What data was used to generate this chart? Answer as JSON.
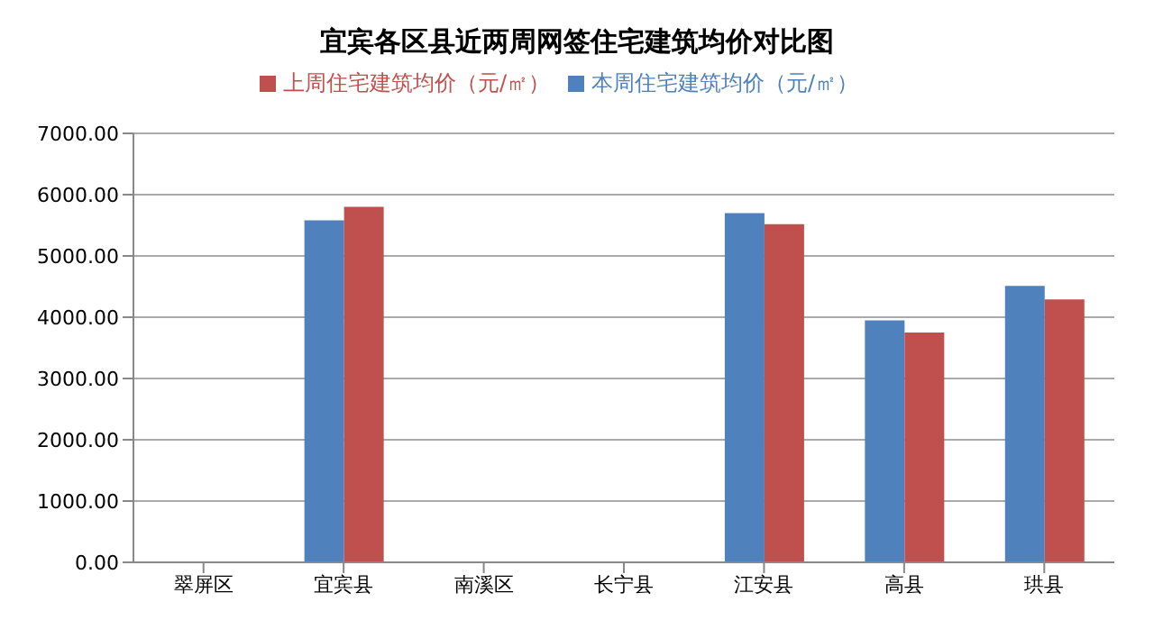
{
  "chart_data": {
    "type": "bar",
    "title": "宜宾各区县近两周网签住宅建筑均价对比图",
    "categories": [
      "翠屏区",
      "宜宾县",
      "南溪区",
      "长宁县",
      "江安县",
      "高县",
      "珙县"
    ],
    "series": [
      {
        "name": "本周住宅建筑均价（元/㎡）",
        "color": "#4f81bd",
        "values": [
          null,
          5580,
          null,
          null,
          5700,
          3950,
          4510
        ]
      },
      {
        "name": "上周住宅建筑均价（元/㎡）",
        "color": "#c0504d",
        "values": [
          null,
          5800,
          null,
          null,
          5520,
          3750,
          4290
        ]
      }
    ],
    "ylim": [
      0,
      7000
    ],
    "yticks": [
      {
        "value": 0,
        "label": "0.00"
      },
      {
        "value": 1000,
        "label": "1000.00"
      },
      {
        "value": 2000,
        "label": "2000.00"
      },
      {
        "value": 3000,
        "label": "3000.00"
      },
      {
        "value": 4000,
        "label": "4000.00"
      },
      {
        "value": 5000,
        "label": "5000.00"
      },
      {
        "value": 6000,
        "label": "6000.00"
      },
      {
        "value": 7000,
        "label": "7000.00"
      }
    ],
    "grid": "y",
    "legend": "top"
  }
}
